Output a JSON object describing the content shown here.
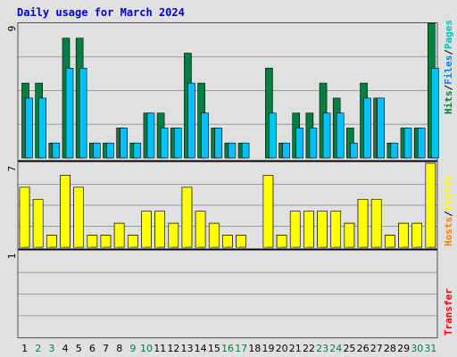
{
  "chart_data": {
    "type": "bar",
    "title": "Daily usage for March 2024",
    "categories": [
      "1",
      "2",
      "3",
      "4",
      "5",
      "6",
      "7",
      "8",
      "9",
      "10",
      "11",
      "12",
      "13",
      "14",
      "15",
      "16",
      "17",
      "18",
      "19",
      "20",
      "21",
      "22",
      "23",
      "24",
      "25",
      "26",
      "27",
      "28",
      "29",
      "30",
      "31"
    ],
    "weekend_days": [
      "2",
      "3",
      "9",
      "10",
      "16",
      "17",
      "23",
      "24",
      "30",
      "31"
    ],
    "panels": [
      {
        "id": "hits",
        "ylabel": "Hits/Files/Pages",
        "ylabel_parts": [
          "Hits",
          "/",
          "Files",
          "/",
          "Pages"
        ],
        "ymax_label": "9",
        "ylim": [
          0,
          9
        ],
        "series": [
          {
            "name": "Hits",
            "color": "#008040",
            "values": [
              5,
              5,
              1,
              8,
              8,
              1,
              1,
              2,
              1,
              3,
              3,
              2,
              7,
              5,
              2,
              1,
              1,
              0,
              6,
              1,
              3,
              3,
              5,
              4,
              2,
              5,
              4,
              1,
              2,
              2,
              9
            ]
          },
          {
            "name": "Files",
            "color": "#00c0ff",
            "values": [
              4,
              4,
              1,
              6,
              6,
              1,
              1,
              2,
              1,
              3,
              2,
              2,
              5,
              3,
              2,
              1,
              1,
              0,
              3,
              1,
              2,
              2,
              3,
              3,
              1,
              4,
              4,
              1,
              2,
              2,
              6
            ]
          }
        ]
      },
      {
        "id": "visits",
        "ylabel": "Hosts/Visits",
        "ylabel_parts": [
          "Hosts",
          "/",
          "Visits"
        ],
        "ymax_label": "7",
        "ylim": [
          0,
          7
        ],
        "series": [
          {
            "name": "Hosts",
            "color": "#ff8000",
            "values": [
              5,
              4,
              1,
              6,
              5,
              1,
              1,
              2,
              1,
              3,
              3,
              2,
              5,
              3,
              2,
              1,
              1,
              0,
              6,
              1,
              3,
              3,
              3,
              3,
              2,
              4,
              4,
              1,
              2,
              2,
              7
            ]
          },
          {
            "name": "Visits",
            "color": "#ffff00",
            "values": [
              5,
              4,
              1,
              6,
              5,
              1,
              1,
              2,
              1,
              3,
              3,
              2,
              5,
              3,
              2,
              1,
              1,
              0,
              6,
              1,
              3,
              3,
              3,
              3,
              2,
              4,
              4,
              1,
              2,
              2,
              7
            ]
          }
        ]
      },
      {
        "id": "transfer",
        "ylabel": "Transfer",
        "ylabel_parts": [
          "Transfer"
        ],
        "ymax_label": "1",
        "ylim": [
          0,
          1
        ],
        "series": [
          {
            "name": "Transfer",
            "color": "#ff0000",
            "values": [
              0,
              0,
              0,
              0,
              0,
              0,
              0,
              0,
              0,
              0,
              0,
              0,
              0,
              0,
              0,
              0,
              0,
              0,
              0,
              0,
              0,
              0,
              0,
              0,
              0,
              0,
              0,
              0,
              0,
              0,
              0
            ]
          }
        ]
      }
    ],
    "colors": {
      "weekday_label": "#000000",
      "weekend_label": "#008040",
      "hits_label": "#008040",
      "files_label": "#0080ff",
      "pages_label": "#00c0c0",
      "hosts_label": "#ff8000",
      "visits_label": "#ffff00",
      "transfer_label": "#ff0000",
      "separator": "#000000"
    }
  }
}
